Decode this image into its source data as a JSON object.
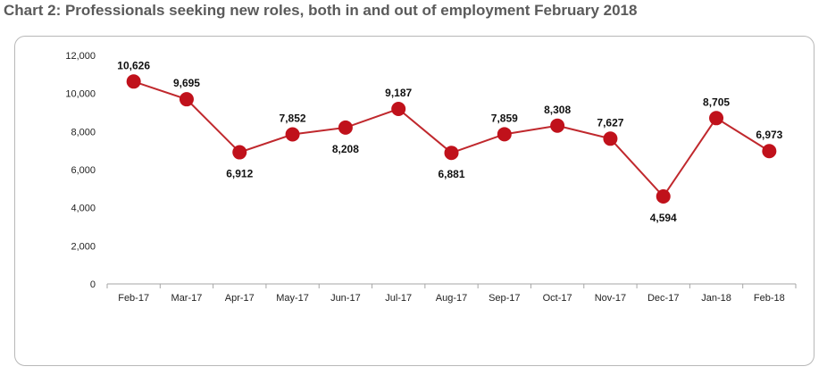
{
  "title": "Chart 2: Professionals seeking new roles, both in and out of employment February 2018",
  "chart_data": {
    "type": "line",
    "categories": [
      "Feb-17",
      "Mar-17",
      "Apr-17",
      "May-17",
      "Jun-17",
      "Jul-17",
      "Aug-17",
      "Sep-17",
      "Oct-17",
      "Nov-17",
      "Dec-17",
      "Jan-18",
      "Feb-18"
    ],
    "values": [
      10626,
      9695,
      6912,
      7852,
      8208,
      9187,
      6881,
      7859,
      8308,
      7627,
      4594,
      8705,
      6973
    ],
    "data_labels": [
      "10,626",
      "9,695",
      "6,912",
      "7,852",
      "8,208",
      "9,187",
      "6,881",
      "7,859",
      "8,308",
      "7,627",
      "4,594",
      "8,705",
      "6,973"
    ],
    "ylim": [
      0,
      12000
    ],
    "yticks": [
      0,
      2000,
      4000,
      6000,
      8000,
      10000,
      12000
    ],
    "ytick_labels": [
      "0",
      "2,000",
      "4,000",
      "6,000",
      "8,000",
      "10,000",
      "12,000"
    ],
    "xlabel": "",
    "ylabel": "",
    "grid": false,
    "legend": false,
    "colors": {
      "line": "#c0282d",
      "marker": "#c0111b"
    }
  }
}
